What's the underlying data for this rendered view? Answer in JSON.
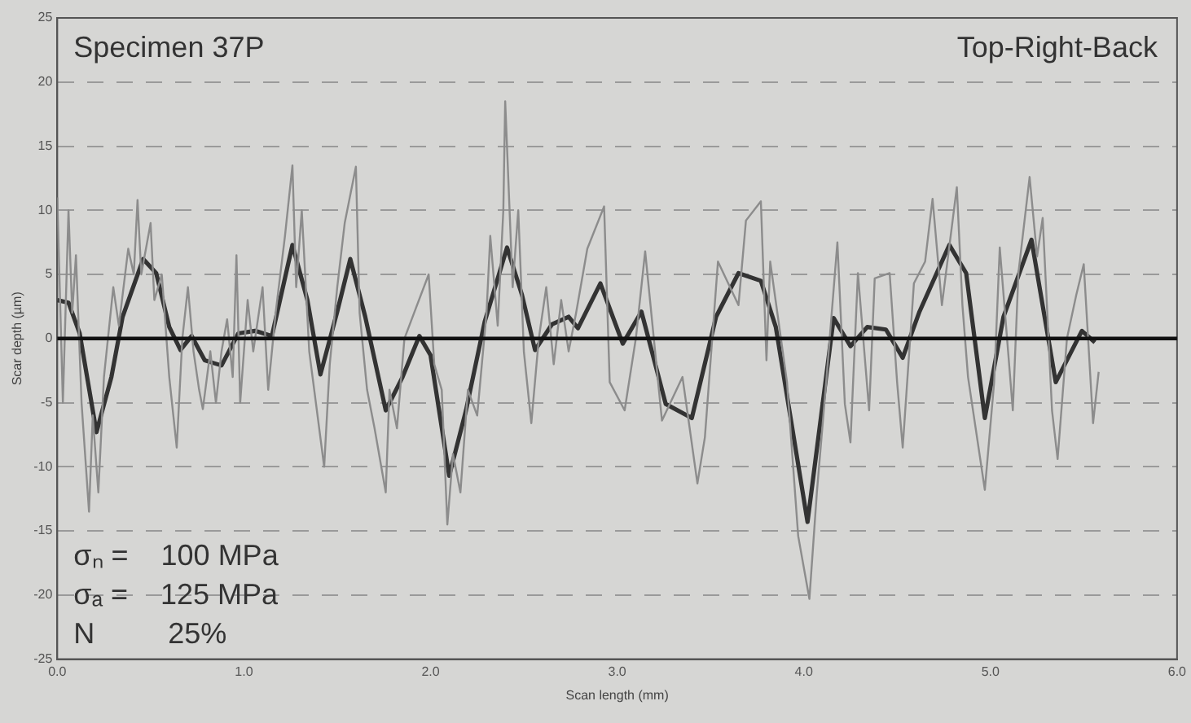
{
  "chart_data": {
    "type": "line",
    "xlabel": "Scan length (mm)",
    "ylabel": "Scar depth (µm)",
    "annotations": [
      "Specimen 37P",
      "Top-Right-Back",
      "σₙ =    100 MPa",
      "σₐ =    125 MPa",
      "N         25%"
    ],
    "xlim": [
      0,
      6
    ],
    "xticks": [
      {
        "value": 0,
        "label": "0.0"
      },
      {
        "value": 1,
        "label": "1.0"
      },
      {
        "value": 2,
        "label": "2.0"
      },
      {
        "value": 3,
        "label": "3.0"
      },
      {
        "value": 4,
        "label": "4.0"
      },
      {
        "value": 5,
        "label": "5.0"
      },
      {
        "value": 6,
        "label": "6.0"
      }
    ],
    "ylim": [
      -25,
      25
    ],
    "yticks": [
      -25,
      -20,
      -15,
      -10,
      -5,
      0,
      5,
      10,
      15,
      20,
      25
    ],
    "grid": "y",
    "legend": false,
    "marker": "none",
    "line_style": "solid",
    "ref_lines": [
      {
        "axis": "y",
        "value": 0,
        "color": "#111111"
      }
    ],
    "series": [
      {
        "color": "#8c8c8c",
        "x": [
          0,
          0.03,
          0.06,
          0.08,
          0.1,
          0.13,
          0.17,
          0.19,
          0.22,
          0.25,
          0.3,
          0.33,
          0.38,
          0.41,
          0.43,
          0.45,
          0.5,
          0.52,
          0.56,
          0.6,
          0.64,
          0.67,
          0.7,
          0.73,
          0.76,
          0.78,
          0.82,
          0.85,
          0.88,
          0.91,
          0.94,
          0.96,
          0.98,
          1.02,
          1.05,
          1.1,
          1.13,
          1.17,
          1.22,
          1.26,
          1.28,
          1.31,
          1.35,
          1.43,
          1.46,
          1.5,
          1.54,
          1.6,
          1.62,
          1.66,
          1.7,
          1.76,
          1.78,
          1.82,
          1.86,
          1.99,
          2.02,
          2.06,
          2.09,
          2.12,
          2.16,
          2.2,
          2.25,
          2.3,
          2.32,
          2.36,
          2.39,
          2.4,
          2.44,
          2.47,
          2.5,
          2.54,
          2.58,
          2.62,
          2.66,
          2.7,
          2.74,
          2.78,
          2.84,
          2.93,
          2.96,
          3.04,
          3.1,
          3.15,
          3.24,
          3.35,
          3.43,
          3.47,
          3.54,
          3.65,
          3.69,
          3.77,
          3.8,
          3.82,
          3.91,
          3.97,
          4.03,
          4.07,
          4.12,
          4.18,
          4.22,
          4.25,
          4.29,
          4.35,
          4.38,
          4.46,
          4.5,
          4.53,
          4.59,
          4.65,
          4.69,
          4.74,
          4.82,
          4.85,
          4.88,
          4.97,
          5.02,
          5.05,
          5.12,
          5.15,
          5.21,
          5.25,
          5.28,
          5.33,
          5.36,
          5.41,
          5.46,
          5.5,
          5.55,
          5.58
        ],
        "values": [
          11,
          -5,
          10,
          2,
          6.5,
          -5,
          -13.5,
          -6,
          -12,
          -3,
          4,
          1,
          7,
          5,
          10.8,
          5,
          9,
          3,
          5,
          -3,
          -8.5,
          0,
          4,
          -1,
          -4,
          -5.5,
          -1,
          -5,
          -1,
          1.5,
          -3,
          6.5,
          -5,
          3,
          -1,
          4,
          -4,
          2,
          8,
          13.5,
          4,
          10,
          -1,
          -10,
          -2,
          4,
          9,
          13.4,
          2,
          -4,
          -7,
          -12,
          -4,
          -7,
          0,
          5,
          -2,
          -4,
          -14.5,
          -9,
          -12,
          -4,
          -6,
          2,
          8,
          1,
          10,
          18.5,
          4,
          10,
          -1,
          -6.6,
          0,
          4,
          -2,
          3,
          -1,
          2,
          7,
          10.3,
          -3.4,
          -5.6,
          0,
          6.8,
          -6.4,
          -3,
          -11.3,
          -7.7,
          6,
          2.6,
          9.2,
          10.7,
          -1.7,
          6,
          -3.4,
          -15.4,
          -20.3,
          -12,
          -3.4,
          7.5,
          -5.1,
          -8.1,
          5.1,
          -5.6,
          4.7,
          5.1,
          -3.4,
          -8.5,
          4.3,
          6,
          10.9,
          2.6,
          11.8,
          2.6,
          -3,
          -11.8,
          -3.4,
          7.1,
          -5.6,
          5.1,
          12.6,
          6.4,
          9.4,
          -5.6,
          -9.4,
          0,
          3.4,
          5.8,
          -6.6,
          -2.6
        ]
      },
      {
        "color": "#333333",
        "x": [
          0,
          0.06,
          0.12,
          0.21,
          0.29,
          0.35,
          0.46,
          0.53,
          0.6,
          0.66,
          0.72,
          0.79,
          0.88,
          0.97,
          1.06,
          1.15,
          1.26,
          1.34,
          1.41,
          1.5,
          1.57,
          1.65,
          1.76,
          1.85,
          1.94,
          2,
          2.1,
          2.19,
          2.29,
          2.41,
          2.49,
          2.56,
          2.65,
          2.74,
          2.79,
          2.91,
          3.03,
          3.13,
          3.26,
          3.4,
          3.53,
          3.65,
          3.77,
          3.85,
          4.02,
          4.16,
          4.25,
          4.34,
          4.44,
          4.53,
          4.62,
          4.78,
          4.87,
          4.97,
          5.07,
          5.22,
          5.35,
          5.49,
          5.56
        ],
        "values": [
          3,
          2.8,
          0.4,
          -7.3,
          -3,
          1.7,
          6.2,
          5.1,
          0.9,
          -0.9,
          0.2,
          -1.7,
          -2.1,
          0.4,
          0.6,
          0.2,
          7.3,
          3,
          -2.8,
          2.1,
          6.2,
          1.7,
          -5.6,
          -3,
          0.2,
          -1.3,
          -10.7,
          -5.6,
          1.3,
          7.1,
          3.4,
          -0.9,
          1.1,
          1.7,
          0.8,
          4.3,
          -0.4,
          2.1,
          -5.1,
          -6.2,
          1.7,
          5.1,
          4.5,
          0.9,
          -14.3,
          1.6,
          -0.6,
          0.9,
          0.7,
          -1.5,
          2.1,
          7.3,
          5.1,
          -6.2,
          1.7,
          7.7,
          -3.4,
          0.6,
          -0.3
        ]
      }
    ]
  }
}
